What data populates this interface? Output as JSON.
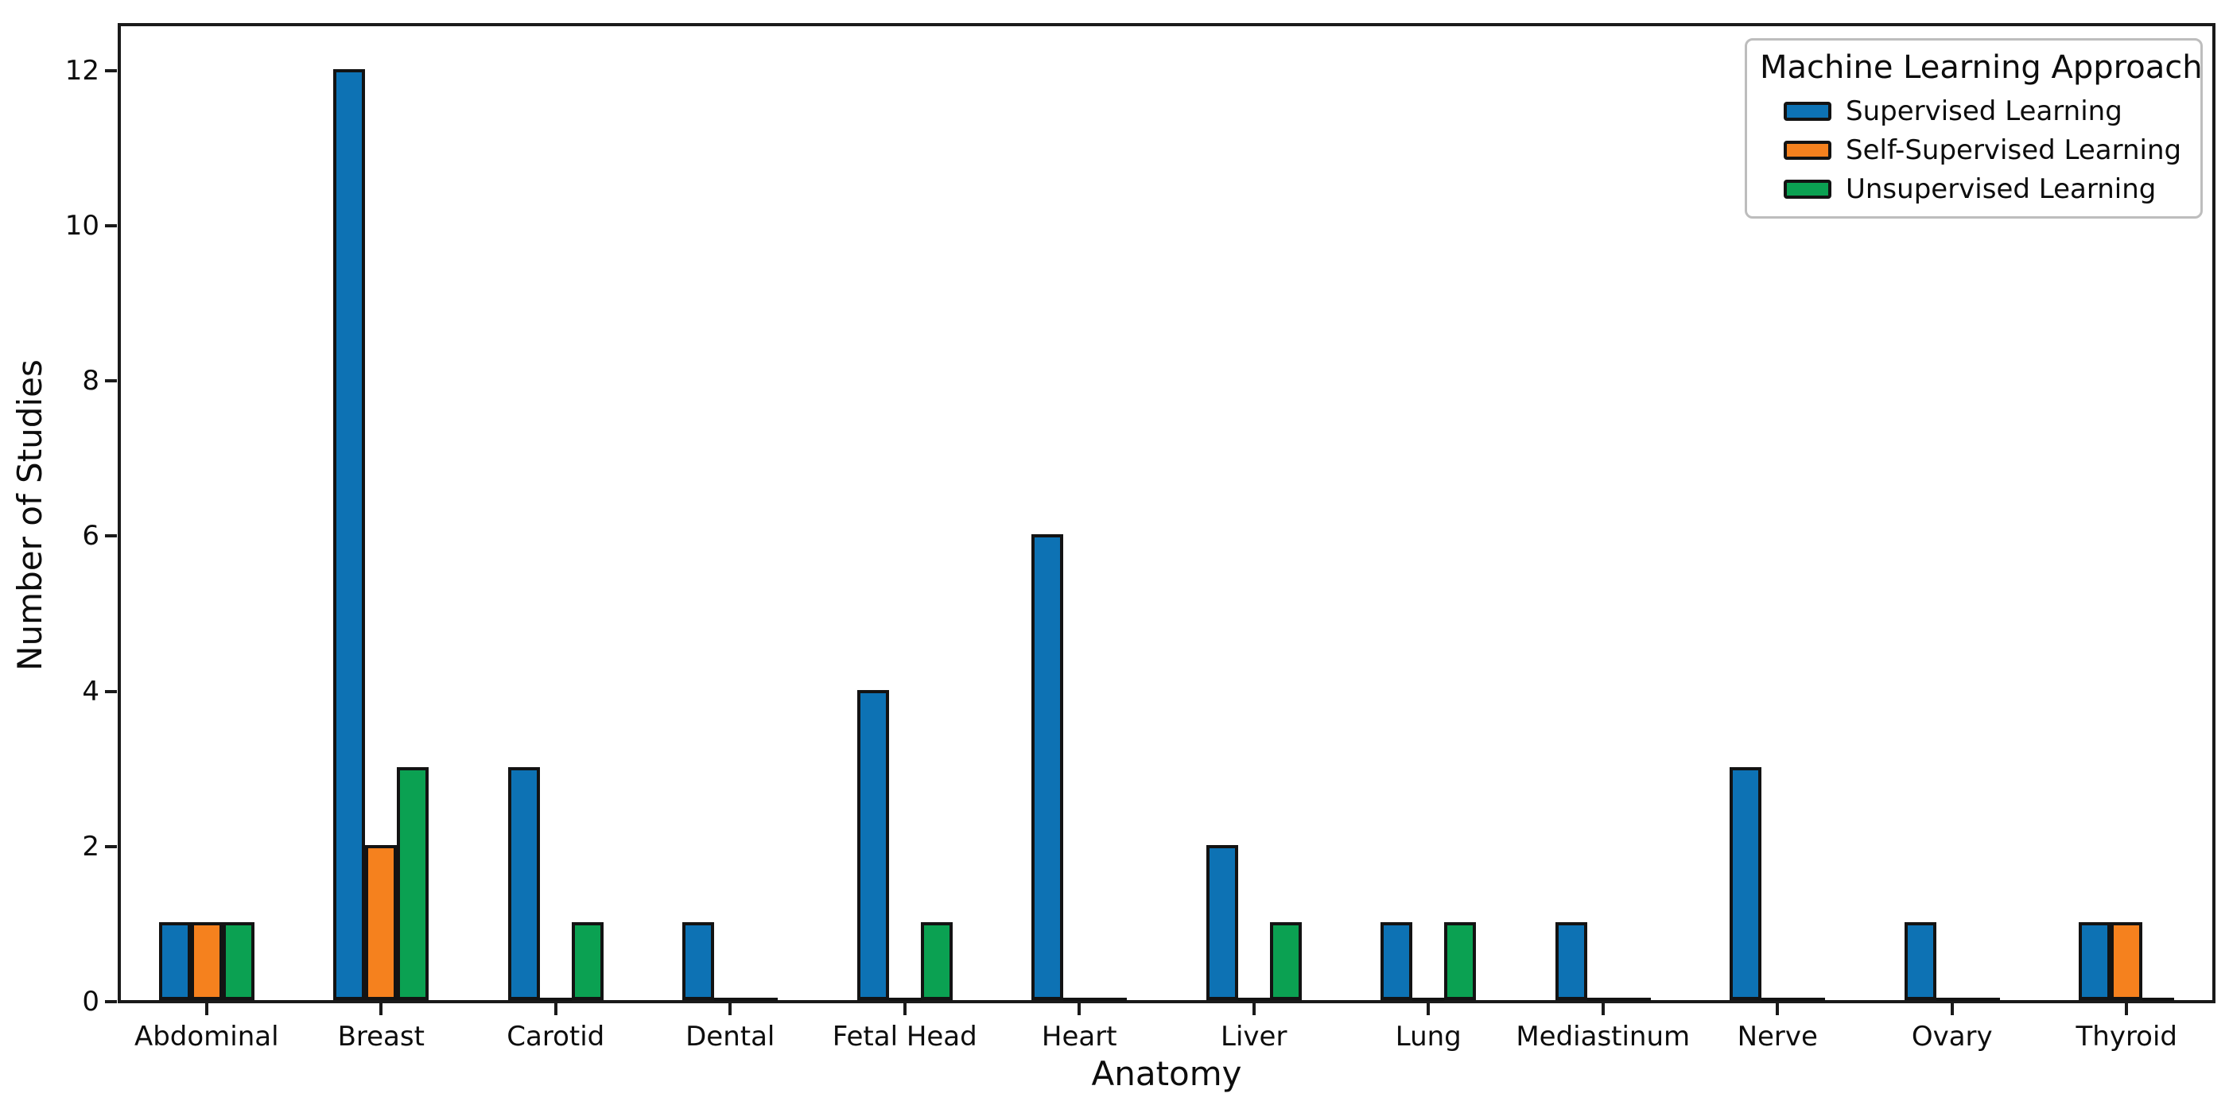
{
  "chart_data": {
    "type": "bar",
    "title": "",
    "xlabel": "Anatomy",
    "ylabel": "Number of Studies",
    "categories": [
      "Abdominal",
      "Breast",
      "Carotid",
      "Dental",
      "Fetal Head",
      "Heart",
      "Liver",
      "Lung",
      "Mediastinum",
      "Nerve",
      "Ovary",
      "Thyroid"
    ],
    "series": [
      {
        "name": "Supervised Learning",
        "color": "#0d72b4",
        "values": [
          1,
          12,
          3,
          1,
          4,
          6,
          2,
          1,
          1,
          3,
          1,
          1
        ]
      },
      {
        "name": "Self-Supervised Learning",
        "color": "#f5811e",
        "values": [
          1,
          2,
          0,
          0,
          0,
          0,
          0,
          0,
          0,
          0,
          0,
          1
        ]
      },
      {
        "name": "Unsupervised Learning",
        "color": "#0ba152",
        "values": [
          1,
          3,
          1,
          0,
          1,
          0,
          1,
          1,
          0,
          0,
          0,
          0
        ]
      }
    ],
    "ylim": [
      0,
      12.6
    ],
    "yticks": [
      0,
      2,
      4,
      6,
      8,
      10,
      12
    ],
    "grid": false,
    "legend_title": "Machine Learning Approach",
    "legend_position": "upper right",
    "bar_edge_color": "#131313"
  }
}
